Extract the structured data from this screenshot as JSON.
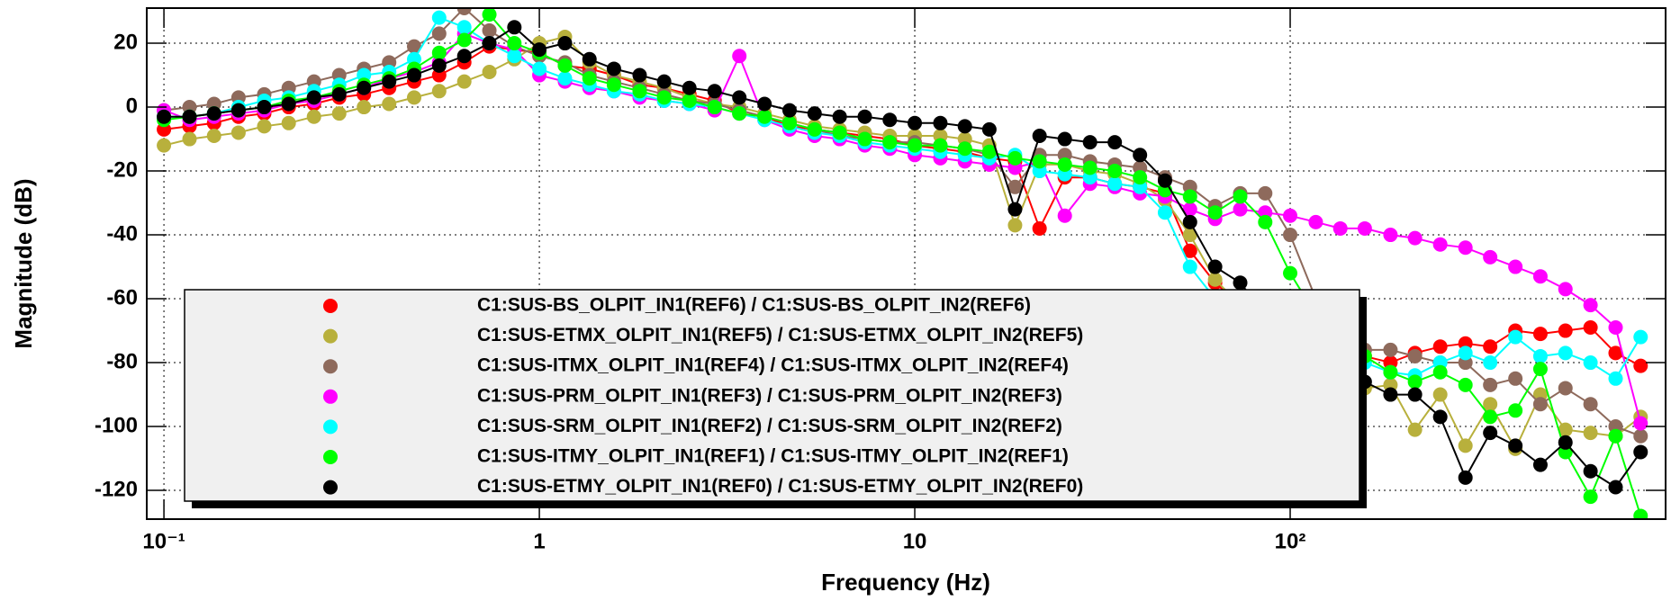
{
  "chart_data": {
    "type": "line",
    "xlabel": "Frequency (Hz)",
    "ylabel": "Magnitude (dB)",
    "xlog": true,
    "grid": true,
    "legend_position": "bottom",
    "xlim": [
      0.09,
      1000
    ],
    "ylim": [
      -129,
      31
    ],
    "xticks": [
      {
        "value": 0.1,
        "label": "10⁻¹"
      },
      1,
      10,
      {
        "value": 100,
        "label": "10²"
      }
    ],
    "yticks": [
      -120,
      -100,
      -80,
      -60,
      -40,
      -20,
      0,
      20
    ],
    "x": [
      0.1,
      0.117,
      0.136,
      0.158,
      0.185,
      0.215,
      0.251,
      0.293,
      0.341,
      0.398,
      0.464,
      0.541,
      0.631,
      0.736,
      0.858,
      1,
      1.17,
      1.36,
      1.58,
      1.85,
      2.15,
      2.51,
      2.93,
      3.41,
      3.98,
      4.64,
      5.41,
      6.31,
      7.36,
      8.58,
      10,
      11.7,
      13.6,
      15.8,
      18.5,
      21.5,
      25.1,
      29.3,
      34.1,
      39.8,
      46.4,
      54.1,
      63.1,
      73.6,
      85.8,
      100,
      117,
      136,
      158,
      185,
      215,
      251,
      293,
      341,
      398,
      464,
      541,
      631,
      736,
      858
    ],
    "series": [
      {
        "name": "C1:SUS-BS_OLPIT_IN1(REF6) / C1:SUS-BS_OLPIT_IN2(REF6)",
        "color": "#ff0000",
        "values": [
          -7,
          -6,
          -5,
          -3,
          -2,
          0,
          1,
          3,
          4,
          6,
          8,
          10,
          14,
          19,
          18,
          17,
          13,
          12,
          10,
          7,
          6,
          4,
          2,
          -2,
          -3,
          -6,
          -7,
          -8,
          -9,
          -10,
          -12,
          -13,
          -14,
          -16,
          -17,
          -38,
          -22,
          -22,
          -24,
          -25,
          -27,
          -45,
          -55,
          -62,
          -66,
          -70,
          -72,
          -75,
          -78,
          -80,
          -77,
          -75,
          -74,
          -75,
          -70,
          -71,
          -70,
          -69,
          -77,
          -81
        ]
      },
      {
        "name": "C1:SUS-ETMX_OLPIT_IN1(REF5) / C1:SUS-ETMX_OLPIT_IN2(REF5)",
        "color": "#b8b03c",
        "values": [
          -12,
          -10,
          -9,
          -8,
          -6,
          -5,
          -3,
          -2,
          0,
          1,
          3,
          5,
          8,
          11,
          15,
          20,
          22,
          14,
          10,
          8,
          6,
          3,
          1,
          0,
          -2,
          -4,
          -6,
          -7,
          -8,
          -9,
          -9,
          -9,
          -10,
          -12,
          -37,
          -18,
          -18,
          -20,
          -21,
          -24,
          -29,
          -40,
          -54,
          -62,
          -70,
          -75,
          -80,
          -85,
          -88,
          -87,
          -101,
          -90,
          -106,
          -93,
          -107,
          -90,
          -101,
          -102,
          -103,
          -97
        ]
      },
      {
        "name": "C1:SUS-ITMX_OLPIT_IN1(REF4) / C1:SUS-ITMX_OLPIT_IN2(REF4)",
        "color": "#8e6a5c",
        "values": [
          -1,
          0,
          1,
          3,
          4,
          6,
          8,
          10,
          12,
          14,
          19,
          23,
          31,
          24,
          19,
          16,
          14,
          10,
          8,
          6,
          4,
          2,
          1,
          -1,
          -3,
          -5,
          -7,
          -9,
          -10,
          -11,
          -11,
          -12,
          -13,
          -15,
          -25,
          -15,
          -15,
          -17,
          -18,
          -19,
          -22,
          -25,
          -31,
          -27,
          -27,
          -40,
          -60,
          -70,
          -76,
          -76,
          -78,
          -80,
          -80,
          -87,
          -85,
          -93,
          -88,
          -93,
          -100,
          -103
        ]
      },
      {
        "name": "C1:SUS-PRM_OLPIT_IN1(REF3) / C1:SUS-PRM_OLPIT_IN2(REF3)",
        "color": "#ff00ff",
        "values": [
          -1,
          -4,
          -3,
          -2,
          -1,
          1,
          2,
          4,
          6,
          9,
          11,
          14,
          23,
          20,
          18,
          10,
          8,
          6,
          5,
          3,
          2,
          1,
          -1,
          16,
          -4,
          -7,
          -9,
          -10,
          -12,
          -13,
          -15,
          -16,
          -17,
          -18,
          -19,
          -17,
          -34,
          -24,
          -25,
          -27,
          -28,
          -32,
          -35,
          -32,
          -33,
          -34,
          -36,
          -38,
          -38,
          -40,
          -41,
          -43,
          -44,
          -47,
          -50,
          -53,
          -57,
          -62,
          -69,
          -99
        ]
      },
      {
        "name": "C1:SUS-SRM_OLPIT_IN1(REF2) / C1:SUS-SRM_OLPIT_IN2(REF2)",
        "color": "#00ffff",
        "values": [
          -3,
          -3,
          -2,
          0,
          2,
          3,
          5,
          7,
          10,
          11,
          15,
          28,
          25,
          20,
          16,
          12,
          9,
          7,
          5,
          4,
          2,
          1,
          0,
          -2,
          -4,
          -6,
          -8,
          -9,
          -11,
          -12,
          -13,
          -14,
          -15,
          -16,
          -15,
          -20,
          -21,
          -22,
          -24,
          -25,
          -33,
          -50,
          -60,
          -68,
          -74,
          -78,
          -80,
          -82,
          -80,
          -83,
          -84,
          -80,
          -77,
          -80,
          -72,
          -78,
          -77,
          -80,
          -85,
          -72
        ]
      },
      {
        "name": "C1:SUS-ITMY_OLPIT_IN1(REF1) / C1:SUS-ITMY_OLPIT_IN2(REF1)",
        "color": "#00ff00",
        "values": [
          -4,
          -3,
          -2,
          -1,
          0,
          2,
          3,
          5,
          7,
          9,
          12,
          17,
          21,
          29,
          20,
          17,
          13,
          9,
          7,
          5,
          3,
          2,
          0,
          -2,
          -3,
          -5,
          -7,
          -8,
          -10,
          -11,
          -12,
          -12,
          -13,
          -14,
          -16,
          -17,
          -18,
          -19,
          -20,
          -22,
          -26,
          -28,
          -33,
          -28,
          -36,
          -52,
          -65,
          -72,
          -78,
          -83,
          -86,
          -83,
          -87,
          -97,
          -95,
          -82,
          -108,
          -122,
          -103,
          -128
        ]
      },
      {
        "name": "C1:SUS-ETMY_OLPIT_IN1(REF0) / C1:SUS-ETMY_OLPIT_IN2(REF0)",
        "color": "#000000",
        "values": [
          -3,
          -3,
          -2,
          -1,
          0,
          1,
          3,
          4,
          6,
          8,
          10,
          13,
          16,
          20,
          25,
          18,
          20,
          15,
          12,
          10,
          8,
          6,
          5,
          3,
          1,
          -1,
          -2,
          -3,
          -3,
          -4,
          -5,
          -5,
          -6,
          -7,
          -32,
          -9,
          -10,
          -11,
          -11,
          -15,
          -23,
          -36,
          -50,
          -55,
          -65,
          -72,
          -78,
          -84,
          -86,
          -90,
          -90,
          -97,
          -116,
          -102,
          -106,
          -112,
          -105,
          -114,
          -119,
          -108
        ]
      }
    ]
  }
}
